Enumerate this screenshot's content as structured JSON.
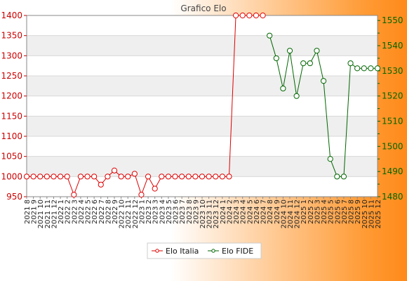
{
  "chart_data": {
    "type": "line",
    "title": "Grafico Elo",
    "categories": [
      "2021 8",
      "2021 9",
      "2021 10",
      "2021 11",
      "2021 12",
      "2022 1",
      "2022 2",
      "2022 3",
      "2022 4",
      "2022 5",
      "2022 6",
      "2022 7",
      "2022 8",
      "2022 9",
      "2022 10",
      "2022 11",
      "2022 12",
      "2023 1",
      "2023 2",
      "2023 3",
      "2023 4",
      "2023 5",
      "2023 6",
      "2023 7",
      "2023 8",
      "2023 9",
      "2023 10",
      "2023 11",
      "2023 12",
      "2024 1",
      "2024 2",
      "2024 3",
      "2024 4",
      "2024 5",
      "2024 6",
      "2024 7",
      "2024 8",
      "2024 9",
      "2024 10",
      "2024 11",
      "2024 12",
      "2025 1",
      "2025 2",
      "2025 3",
      "2025 4",
      "2025 5",
      "2025 6",
      "2025 7",
      "2025 8",
      "2025 9",
      "2025 10",
      "2025 11",
      "2025 12"
    ],
    "y_left": {
      "ylim": [
        950,
        1400
      ],
      "ticks": [
        950,
        1000,
        1050,
        1100,
        1150,
        1200,
        1250,
        1300,
        1350,
        1400
      ]
    },
    "y_right": {
      "ylim": [
        1480,
        1552
      ],
      "ticks": [
        1480,
        1490,
        1500,
        1510,
        1520,
        1530,
        1540,
        1550
      ]
    },
    "grid": true,
    "legend_position": "bottom",
    "series": [
      {
        "name": "Elo Italia",
        "axis": "left",
        "color": "#dd0000",
        "values": [
          1000,
          1000,
          1000,
          1000,
          1000,
          1000,
          1000,
          955,
          1000,
          1000,
          1000,
          980,
          1000,
          1015,
          1000,
          1000,
          1007,
          955,
          1000,
          970,
          1000,
          1000,
          1000,
          1000,
          1000,
          1000,
          1000,
          1000,
          1000,
          1000,
          1000,
          1400,
          1400,
          1400,
          1400,
          1400,
          null,
          null,
          null,
          null,
          null,
          null,
          null,
          null,
          null,
          null,
          null,
          null,
          null,
          null,
          null,
          null,
          null
        ]
      },
      {
        "name": "Elo FIDE",
        "axis": "right",
        "color": "#006600",
        "values": [
          null,
          null,
          null,
          null,
          null,
          null,
          null,
          null,
          null,
          null,
          null,
          null,
          null,
          null,
          null,
          null,
          null,
          null,
          null,
          null,
          null,
          null,
          null,
          null,
          null,
          null,
          null,
          null,
          null,
          null,
          null,
          null,
          null,
          null,
          null,
          null,
          1544,
          1535,
          1523,
          1538,
          1520,
          1533,
          1533,
          1538,
          1526,
          1495,
          1488,
          1488,
          1533,
          1531,
          1531,
          1531,
          1531
        ]
      }
    ]
  }
}
